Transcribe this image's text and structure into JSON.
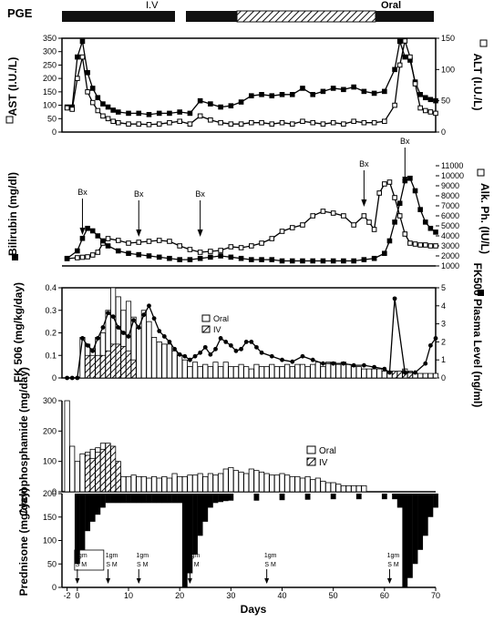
{
  "figure": {
    "pge_label": "PGE",
    "pge_iv_label": "I.V",
    "pge_oral_label": "Oral",
    "x_axis_label": "Days",
    "x_ticks": [
      "-2",
      "0",
      "10",
      "20",
      "30",
      "40",
      "50",
      "60",
      "70"
    ]
  },
  "chart_data": [
    {
      "type": "line",
      "panel": "enzymes",
      "ylabel_left": "AST (I.U./L)",
      "ylabel_right": "ALT (I.U./L)",
      "ylim_left": [
        0,
        350
      ],
      "ylim_right": [
        0,
        150
      ],
      "yticks_left": [
        "0",
        "50",
        "100",
        "150",
        "200",
        "250",
        "300",
        "350"
      ],
      "yticks_right": [
        "0",
        "50",
        "100",
        "150"
      ],
      "series": [
        {
          "name": "AST",
          "marker": "open-square",
          "axis": "left",
          "x": [
            -2,
            -1,
            0,
            1,
            2,
            3,
            4,
            5,
            6,
            7,
            8,
            10,
            12,
            14,
            16,
            18,
            20,
            22,
            24,
            26,
            28,
            30,
            32,
            34,
            36,
            38,
            40,
            42,
            44,
            46,
            48,
            50,
            52,
            54,
            56,
            58,
            60,
            62,
            63,
            64,
            65,
            66,
            67,
            68,
            69,
            70
          ],
          "y": [
            90,
            85,
            200,
            280,
            150,
            110,
            80,
            60,
            50,
            40,
            35,
            30,
            30,
            28,
            30,
            35,
            40,
            30,
            60,
            45,
            35,
            30,
            30,
            35,
            35,
            30,
            35,
            30,
            40,
            35,
            30,
            35,
            30,
            40,
            35,
            35,
            40,
            100,
            250,
            340,
            280,
            180,
            90,
            80,
            75,
            70
          ]
        },
        {
          "name": "ALT",
          "marker": "filled-square",
          "axis": "right",
          "x": [
            -2,
            -1,
            0,
            1,
            2,
            3,
            4,
            5,
            6,
            7,
            8,
            10,
            12,
            14,
            16,
            18,
            20,
            22,
            24,
            26,
            28,
            30,
            32,
            34,
            36,
            38,
            40,
            42,
            44,
            46,
            48,
            50,
            52,
            54,
            56,
            58,
            60,
            62,
            63,
            64,
            65,
            66,
            67,
            68,
            69,
            70
          ],
          "y": [
            40,
            40,
            120,
            145,
            95,
            70,
            55,
            45,
            40,
            35,
            32,
            30,
            30,
            28,
            30,
            30,
            32,
            30,
            50,
            45,
            40,
            42,
            48,
            58,
            60,
            58,
            60,
            60,
            70,
            60,
            65,
            70,
            68,
            72,
            65,
            62,
            65,
            100,
            145,
            120,
            115,
            80,
            60,
            55,
            52,
            50
          ]
        }
      ]
    },
    {
      "type": "line",
      "panel": "bilirubin",
      "ylabel_left": "Bilirubin (mg/dl)",
      "ylabel_right": "Alk. Ph. (IU/L)",
      "ylim_right": [
        1000,
        11000
      ],
      "yticks_right": [
        "1000",
        "2000",
        "3000",
        "4000",
        "5000",
        "6000",
        "7000",
        "8000",
        "9000",
        "10000",
        "11000"
      ],
      "annotations": [
        "Bx",
        "Bx",
        "Bx",
        "Bx",
        "Bx"
      ],
      "biopsy_days": [
        1,
        12,
        24,
        56,
        64
      ],
      "series": [
        {
          "name": "Bilirubin",
          "marker": "filled-square",
          "axis": "left",
          "x": [
            -2,
            0,
            1,
            2,
            3,
            4,
            5,
            6,
            8,
            10,
            12,
            14,
            16,
            18,
            20,
            22,
            24,
            26,
            28,
            30,
            32,
            34,
            36,
            38,
            40,
            42,
            44,
            46,
            48,
            50,
            52,
            54,
            56,
            58,
            60,
            61,
            62,
            63,
            64,
            65,
            66,
            67,
            68,
            69,
            70
          ],
          "y": [
            0.6,
            1.2,
            2.2,
            3.0,
            2.8,
            2.4,
            2.0,
            1.6,
            1.2,
            1.0,
            0.9,
            0.8,
            0.7,
            0.6,
            0.5,
            0.5,
            0.6,
            0.7,
            0.8,
            0.7,
            0.6,
            0.5,
            0.5,
            0.5,
            0.4,
            0.4,
            0.4,
            0.4,
            0.4,
            0.4,
            0.4,
            0.4,
            0.5,
            0.6,
            1.0,
            2.0,
            3.5,
            5.0,
            6.8,
            7.0,
            6.0,
            4.5,
            3.5,
            3.0,
            2.7
          ]
        },
        {
          "name": "Alk. Ph.",
          "marker": "open-square",
          "axis": "right",
          "x": [
            -2,
            0,
            1,
            2,
            3,
            4,
            5,
            6,
            8,
            10,
            12,
            14,
            16,
            18,
            20,
            22,
            24,
            26,
            28,
            30,
            32,
            34,
            36,
            38,
            40,
            42,
            44,
            46,
            48,
            50,
            52,
            54,
            56,
            57,
            58,
            59,
            60,
            61,
            62,
            63,
            64,
            65,
            66,
            67,
            68,
            69,
            70
          ],
          "y": [
            800,
            900,
            950,
            1000,
            1200,
            1500,
            2500,
            3000,
            2800,
            2500,
            2600,
            2700,
            2800,
            2700,
            2200,
            1800,
            1500,
            1600,
            1700,
            2100,
            2000,
            2200,
            2500,
            3000,
            3800,
            4200,
            4500,
            5500,
            6000,
            5800,
            5500,
            4500,
            5500,
            4800,
            4000,
            8000,
            9000,
            9200,
            7500,
            5500,
            3500,
            2500,
            2400,
            2300,
            2300,
            2200,
            2200
          ]
        }
      ]
    },
    {
      "type": "bar",
      "panel": "fk506",
      "ylabel_left": "FK 506 (mg/kg/day)",
      "ylabel_right": "FK506 Plasma Level (ng/ml)",
      "ylim_left": [
        0,
        0.4
      ],
      "ylim_right": [
        0,
        5
      ],
      "yticks_left": [
        "0",
        "0.1",
        "0.2",
        "0.3",
        "0.4"
      ],
      "yticks_right": [
        "0",
        "1",
        "2",
        "3",
        "4",
        "5"
      ],
      "legend": [
        "Oral",
        "IV"
      ],
      "oral_dose": {
        "x": [
          0,
          1,
          2,
          3,
          4,
          5,
          6,
          7,
          8,
          9,
          10,
          11,
          12,
          13,
          14,
          15,
          16,
          17,
          18,
          19,
          20,
          21,
          22,
          23,
          24,
          25,
          26,
          27,
          28,
          29,
          30,
          31,
          32,
          33,
          34,
          35,
          36,
          37,
          38,
          39,
          40,
          41,
          42,
          43,
          44,
          45,
          46,
          47,
          48,
          49,
          50,
          51,
          52,
          53,
          54,
          55,
          56,
          57,
          58,
          59,
          60,
          61,
          62,
          63,
          64,
          65,
          66,
          67,
          68,
          69,
          70
        ],
        "y": [
          0,
          0.18,
          0.15,
          0.13,
          0.18,
          0.2,
          0.3,
          0.4,
          0.36,
          0.3,
          0.34,
          0.27,
          0.22,
          0.3,
          0.25,
          0.18,
          0.16,
          0.15,
          0.15,
          0.12,
          0.1,
          0.08,
          0.05,
          0.07,
          0.05,
          0.06,
          0.05,
          0.07,
          0.05,
          0.07,
          0.05,
          0.05,
          0.06,
          0.05,
          0.04,
          0.06,
          0.05,
          0.05,
          0.06,
          0.05,
          0.05,
          0.06,
          0.05,
          0.06,
          0.06,
          0.05,
          0.06,
          0.07,
          0.05,
          0.07,
          0.07,
          0.06,
          0.07,
          0.06,
          0.05,
          0.05,
          0.04,
          0.04,
          0.04,
          0.04,
          0.03,
          0.03,
          0,
          0,
          0.02,
          0.02,
          0.02,
          0.02,
          0.02,
          0.02,
          0.02
        ]
      },
      "iv_dose": {
        "x": [
          2,
          3,
          4,
          5,
          6,
          7,
          8,
          9,
          10,
          11,
          62,
          63,
          64,
          65
        ],
        "y": [
          0.1,
          0.1,
          0.1,
          0.1,
          0.12,
          0.15,
          0.15,
          0.14,
          0.12,
          0.08,
          0.03,
          0.03,
          0.04,
          0.03
        ]
      },
      "plasma_level": {
        "name": "FK506 Plasma Level",
        "x": [
          -2,
          -1,
          0,
          1,
          2,
          3,
          4,
          5,
          6,
          7,
          8,
          9,
          10,
          11,
          12,
          13,
          14,
          15,
          16,
          17,
          18,
          19,
          20,
          21,
          22,
          23,
          24,
          25,
          26,
          27,
          28,
          29,
          30,
          31,
          32,
          33,
          34,
          35,
          36,
          38,
          40,
          42,
          44,
          46,
          48,
          50,
          52,
          54,
          56,
          58,
          60,
          61,
          62,
          64,
          66,
          68,
          69,
          70
        ],
        "y": [
          0,
          0,
          0,
          2.2,
          1.8,
          1.5,
          2.2,
          2.8,
          3.6,
          3.4,
          2.8,
          2.5,
          2.3,
          3.2,
          2.8,
          3.5,
          4.0,
          3.3,
          2.6,
          2.3,
          2.0,
          1.6,
          1.3,
          1.2,
          1.0,
          1.2,
          1.4,
          1.7,
          1.3,
          1.6,
          2.2,
          2.0,
          1.8,
          1.5,
          1.6,
          2.0,
          2.0,
          1.7,
          1.4,
          1.2,
          1.0,
          0.9,
          1.2,
          1.0,
          0.8,
          0.8,
          0.8,
          0.7,
          0.7,
          0.6,
          0.5,
          0.3,
          4.4,
          0.3,
          0.3,
          0.8,
          1.8,
          2.2
        ]
      }
    },
    {
      "type": "bar",
      "panel": "cyclophosphamide",
      "ylabel_left": "Cyclophosphamide (mg/day)",
      "ylim": [
        0,
        300
      ],
      "yticks": [
        "0",
        "100",
        "200",
        "300"
      ],
      "legend": [
        "Oral",
        "IV"
      ],
      "oral": {
        "x": [
          -2,
          -1,
          0,
          1,
          2,
          3,
          4,
          5,
          6,
          7,
          8,
          9,
          10,
          11,
          12,
          13,
          14,
          15,
          16,
          17,
          18,
          19,
          20,
          21,
          22,
          23,
          24,
          25,
          26,
          27,
          28,
          29,
          30,
          31,
          32,
          33,
          34,
          35,
          36,
          37,
          38,
          39,
          40,
          41,
          42,
          43,
          44,
          45,
          46,
          47,
          48,
          49,
          50,
          51,
          52,
          53,
          54,
          55,
          56
        ],
        "y": [
          300,
          150,
          100,
          125,
          130,
          140,
          145,
          160,
          130,
          80,
          60,
          50,
          50,
          55,
          50,
          50,
          45,
          50,
          45,
          50,
          45,
          60,
          50,
          50,
          55,
          55,
          60,
          50,
          60,
          55,
          60,
          75,
          80,
          70,
          65,
          60,
          75,
          70,
          65,
          60,
          55,
          55,
          60,
          55,
          50,
          50,
          45,
          50,
          40,
          45,
          35,
          30,
          30,
          25,
          20,
          20,
          20,
          20,
          20
        ]
      },
      "iv": {
        "x": [
          2,
          3,
          4,
          5,
          6,
          7,
          8
        ],
        "y": [
          120,
          110,
          130,
          140,
          160,
          150,
          100
        ]
      }
    },
    {
      "type": "bar",
      "panel": "prednisone",
      "ylabel_left": "Prednisone (mg/day)",
      "ylim": [
        0,
        200
      ],
      "yticks": [
        "0",
        "50",
        "100",
        "150",
        "200"
      ],
      "bolus_labels": [
        "2gm",
        "1gm",
        "1gm",
        "1gm",
        "1gm",
        "1gm"
      ],
      "bolus_sub": [
        "S M",
        "S M",
        "S M",
        "S M",
        "S M",
        "S M"
      ],
      "bolus_days": [
        0,
        6,
        12,
        22,
        37,
        61
      ],
      "x": [
        0,
        1,
        2,
        3,
        4,
        5,
        6,
        7,
        8,
        9,
        10,
        11,
        12,
        13,
        14,
        15,
        16,
        17,
        18,
        19,
        20,
        21,
        22,
        23,
        24,
        25,
        26,
        27,
        28,
        29,
        30,
        35,
        40,
        45,
        50,
        55,
        60,
        62,
        63,
        64,
        65,
        66,
        67,
        68,
        69,
        70
      ],
      "y": [
        150,
        120,
        80,
        60,
        45,
        30,
        20,
        20,
        20,
        20,
        20,
        20,
        20,
        20,
        20,
        20,
        20,
        20,
        20,
        20,
        20,
        200,
        170,
        130,
        90,
        60,
        30,
        20,
        18,
        16,
        15,
        15,
        14,
        13,
        12,
        12,
        12,
        12,
        30,
        200,
        180,
        150,
        120,
        90,
        50,
        30
      ]
    }
  ]
}
